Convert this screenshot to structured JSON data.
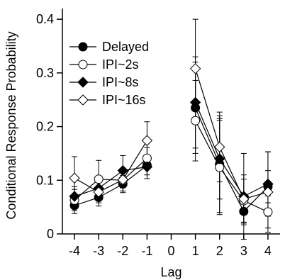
{
  "chart_data": {
    "type": "line",
    "xlabel": "Lag",
    "ylabel": "Conditional Response Probability",
    "xlim": [
      -4.5,
      4.5
    ],
    "ylim": [
      0,
      0.42
    ],
    "x_ticks": [
      -4,
      -3,
      -2,
      -1,
      0,
      1,
      2,
      3,
      4
    ],
    "x_tick_labels": [
      "-4",
      "-3",
      "-2",
      "-1",
      "0",
      "1",
      "2",
      "3",
      "4"
    ],
    "y_ticks": [
      0,
      0.1,
      0.2,
      0.3,
      0.4
    ],
    "y_tick_labels": [
      "0",
      "0.1",
      "0.2",
      "0.3",
      "0.4"
    ],
    "grid": false,
    "legend_position": "top-left",
    "segments": [
      [
        -4,
        -3,
        -2,
        -1
      ],
      [
        1,
        2,
        3,
        4
      ]
    ],
    "series": [
      {
        "name": "Delayed",
        "marker": "filled-circle",
        "color": "#000000",
        "points": [
          {
            "x": -4,
            "y": 0.053,
            "err": 0.015
          },
          {
            "x": -3,
            "y": 0.068,
            "err": 0.016
          },
          {
            "x": -2,
            "y": 0.093,
            "err": 0.016
          },
          {
            "x": -1,
            "y": 0.128,
            "err": 0.018
          },
          {
            "x": 1,
            "y": 0.235,
            "err": 0.085
          },
          {
            "x": 2,
            "y": 0.13,
            "err": 0.09
          },
          {
            "x": 3,
            "y": 0.042,
            "err": 0.025
          },
          {
            "x": 4,
            "y": 0.088,
            "err": 0.03
          }
        ]
      },
      {
        "name": "IPI~2s",
        "marker": "open-circle",
        "color": "#000000",
        "points": [
          {
            "x": -4,
            "y": 0.063,
            "err": 0.02
          },
          {
            "x": -3,
            "y": 0.102,
            "err": 0.035
          },
          {
            "x": -2,
            "y": 0.1,
            "err": 0.02
          },
          {
            "x": -1,
            "y": 0.141,
            "err": 0.02
          },
          {
            "x": 1,
            "y": 0.211,
            "err": 0.075
          },
          {
            "x": 2,
            "y": 0.124,
            "err": 0.088
          },
          {
            "x": 3,
            "y": 0.062,
            "err": 0.04
          },
          {
            "x": 4,
            "y": 0.041,
            "err": 0.03
          }
        ]
      },
      {
        "name": "IPI~8s",
        "marker": "filled-diamond",
        "color": "#000000",
        "points": [
          {
            "x": -4,
            "y": 0.07,
            "err": 0.018
          },
          {
            "x": -3,
            "y": 0.085,
            "err": 0.02
          },
          {
            "x": -2,
            "y": 0.118,
            "err": 0.028
          },
          {
            "x": -1,
            "y": 0.125,
            "err": 0.022
          },
          {
            "x": 1,
            "y": 0.245,
            "err": 0.085
          },
          {
            "x": 2,
            "y": 0.14,
            "err": 0.075
          },
          {
            "x": 3,
            "y": 0.07,
            "err": 0.08
          },
          {
            "x": 4,
            "y": 0.093,
            "err": 0.06
          }
        ]
      },
      {
        "name": "IPI~16s",
        "marker": "open-diamond",
        "color": "#000000",
        "points": [
          {
            "x": -4,
            "y": 0.104,
            "err": 0.04
          },
          {
            "x": -3,
            "y": 0.078,
            "err": 0.02
          },
          {
            "x": -2,
            "y": 0.101,
            "err": 0.015
          },
          {
            "x": -1,
            "y": 0.174,
            "err": 0.035
          },
          {
            "x": 1,
            "y": 0.308,
            "err": 0.092
          },
          {
            "x": 2,
            "y": 0.162,
            "err": 0.065
          },
          {
            "x": 3,
            "y": 0.065,
            "err": 0.045
          },
          {
            "x": 4,
            "y": 0.078,
            "err": 0.075
          }
        ]
      }
    ]
  }
}
